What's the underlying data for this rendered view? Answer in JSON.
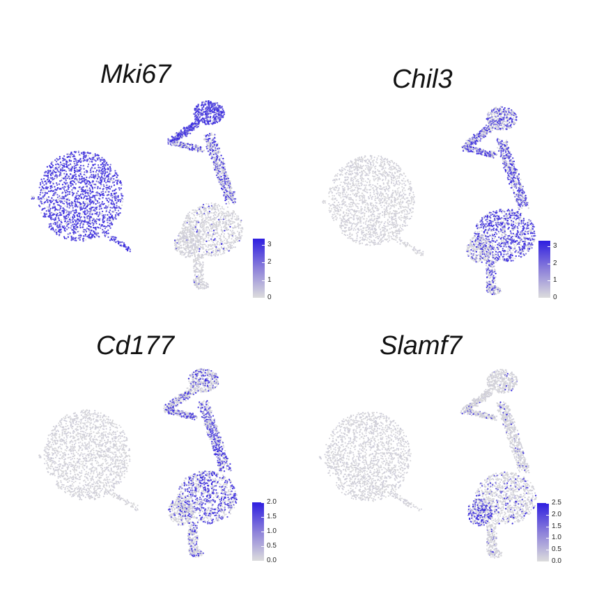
{
  "chart_data": [
    {
      "type": "scatter",
      "title": "Mki67",
      "colorbar": {
        "ticks": [
          "3",
          "2",
          "1",
          "0"
        ],
        "range": [
          0,
          3.4
        ]
      },
      "high_color": "#2e1ee0",
      "low_color": "#d9d9d9",
      "expression": {
        "left_cluster": 0.85,
        "right_top": 0.9,
        "right_mid": 0.45,
        "right_bottom": 0.05,
        "right_tail": 0.03
      }
    },
    {
      "type": "scatter",
      "title": "Chil3",
      "colorbar": {
        "ticks": [
          "3",
          "2",
          "1",
          "0"
        ],
        "range": [
          0,
          3.4
        ]
      },
      "high_color": "#2e1ee0",
      "low_color": "#d9d9d9",
      "expression": {
        "left_cluster": 0.0,
        "right_top": 0.45,
        "right_mid": 0.55,
        "right_bottom": 0.65,
        "right_tail": 0.2
      }
    },
    {
      "type": "scatter",
      "title": "Cd177",
      "colorbar": {
        "ticks": [
          "2.0",
          "1.5",
          "1.0",
          "0.5",
          "0.0"
        ],
        "range": [
          0,
          2.0
        ]
      },
      "high_color": "#2e1ee0",
      "low_color": "#d9d9d9",
      "expression": {
        "left_cluster": 0.0,
        "right_top": 0.3,
        "right_mid": 0.45,
        "right_bottom": 0.5,
        "right_tail": 0.15
      }
    },
    {
      "type": "scatter",
      "title": "Slamf7",
      "colorbar": {
        "ticks": [
          "2.5",
          "2.0",
          "1.5",
          "1.0",
          "0.5",
          "0.0"
        ],
        "range": [
          0,
          2.5
        ]
      },
      "high_color": "#2e1ee0",
      "low_color": "#d9d9d9",
      "expression": {
        "left_cluster": 0.0,
        "right_top": 0.04,
        "right_mid": 0.08,
        "right_bottom": 0.12,
        "right_tail": 0.55
      }
    }
  ]
}
